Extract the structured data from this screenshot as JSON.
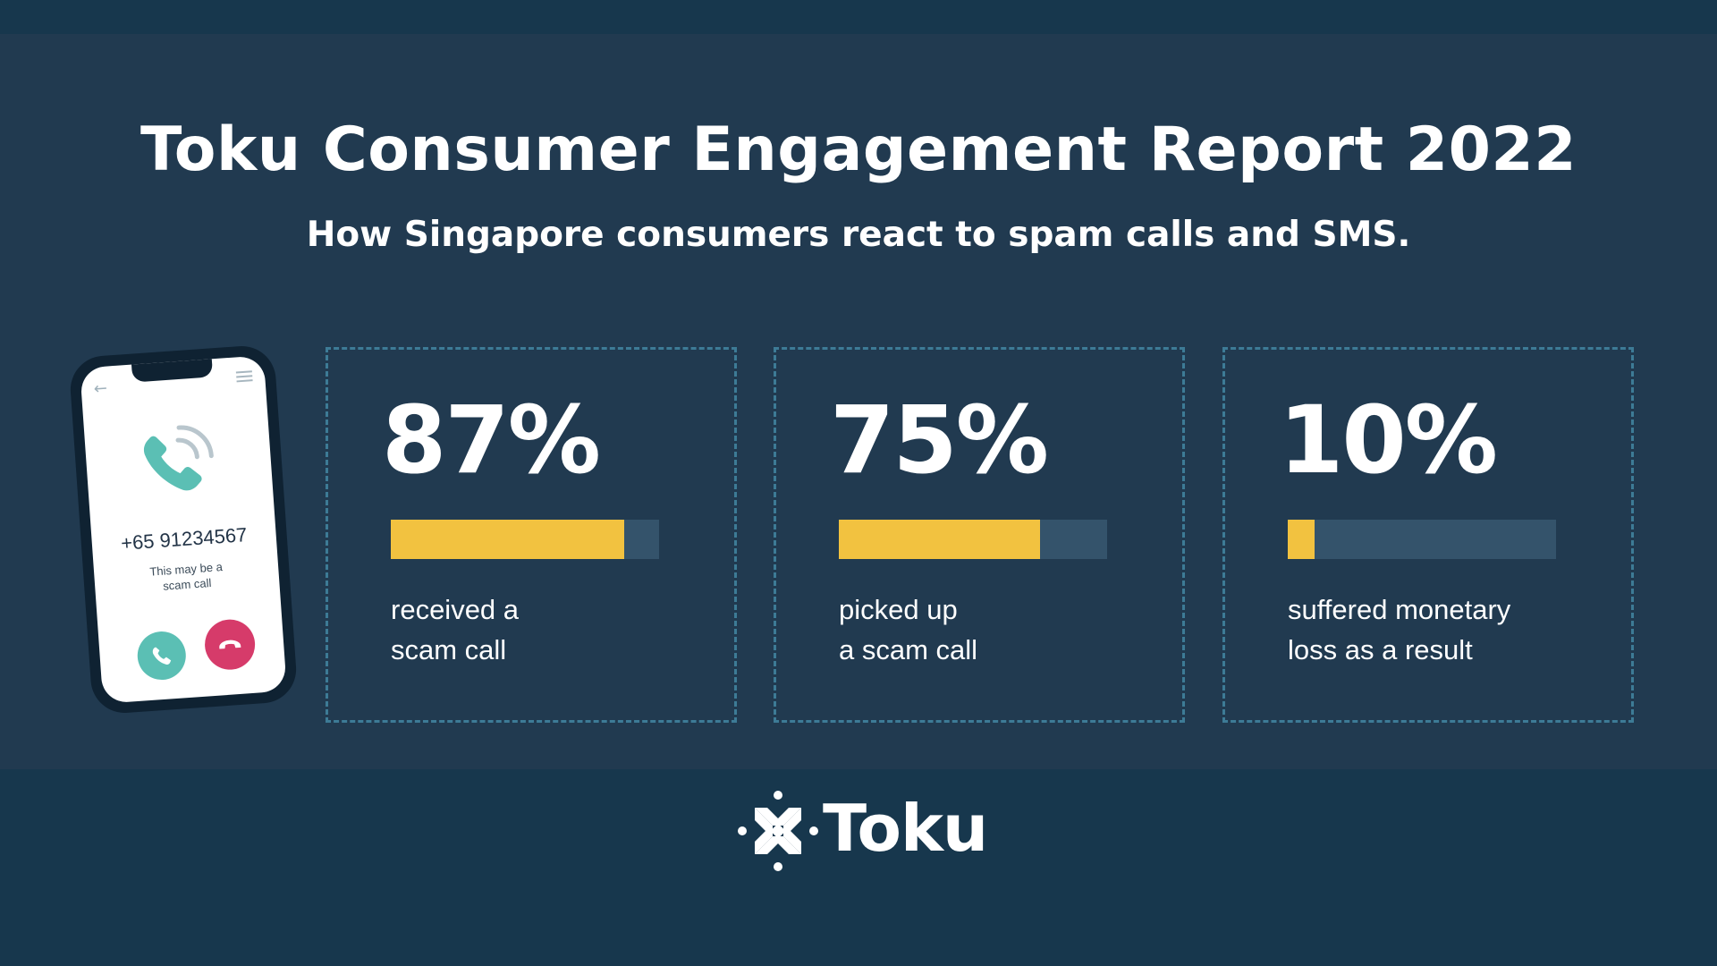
{
  "header": {
    "title": "Toku Consumer Engagement Report 2022",
    "subtitle": "How Singapore consumers react to spam calls and SMS."
  },
  "phone": {
    "number": "+65 91234567",
    "note": "This may be a scam call",
    "icons": [
      "back-arrow-icon",
      "menu-icon",
      "ringing-phone-icon",
      "accept-call-icon",
      "decline-call-icon"
    ]
  },
  "stats": [
    {
      "value": "87%",
      "fraction": 0.87,
      "label": "received a\nscam call"
    },
    {
      "value": "75%",
      "fraction": 0.75,
      "label": "picked up\na scam call"
    },
    {
      "value": "10%",
      "fraction": 0.1,
      "label": "suffered monetary\nloss as a result"
    }
  ],
  "colors": {
    "background": "#17374d",
    "panel": "#213a50",
    "bar_fill": "#f2c240",
    "bar_track": "#34536b",
    "dashed_border": "#3d7b96",
    "accept": "#5bbfb4",
    "decline": "#d63b6a"
  },
  "footer": {
    "logo_text": "Toku"
  }
}
